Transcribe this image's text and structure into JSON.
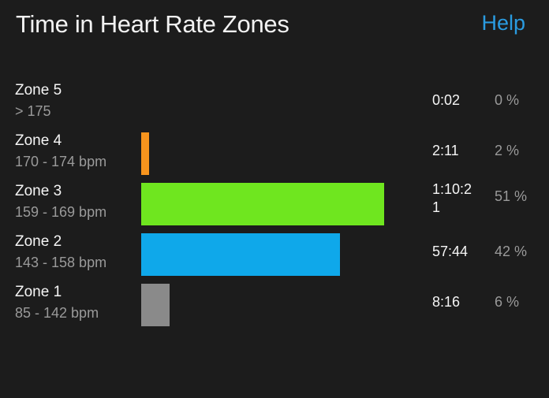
{
  "header": {
    "title": "Time in Heart Rate Zones",
    "help_label": "Help"
  },
  "zones": [
    {
      "name": "Zone 5",
      "range": "> 175",
      "time": "0:02",
      "percent": "0 %",
      "fraction": 0.0,
      "color": "#9a9a9a"
    },
    {
      "name": "Zone 4",
      "range": "170 - 174 bpm",
      "time": "2:11",
      "percent": "2 %",
      "fraction": 0.025,
      "color": "#f7941d"
    },
    {
      "name": "Zone 3",
      "range": "159 - 169 bpm",
      "time": "1:10:21",
      "percent": "51 %",
      "fraction": 0.75,
      "color": "#6fe61f"
    },
    {
      "name": "Zone 2",
      "range": "143 - 158 bpm",
      "time": "57:44",
      "percent": "42 %",
      "fraction": 0.615,
      "color": "#0fa8ea"
    },
    {
      "name": "Zone 1",
      "range": "85 - 142 bpm",
      "time": "8:16",
      "percent": "6 %",
      "fraction": 0.088,
      "color": "#8a8a8a"
    }
  ]
}
